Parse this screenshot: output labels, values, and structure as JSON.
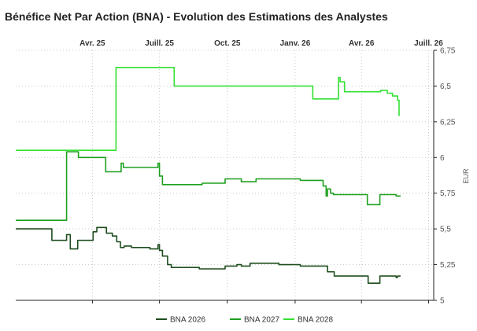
{
  "chart_data": {
    "type": "line",
    "title": "Bénéfice Net Par Action (BNA) - Evolution des Estimations des Analystes",
    "ylabel": "EUR",
    "ylim": [
      5,
      6.75
    ],
    "yticks": [
      {
        "value": 5,
        "label": "5"
      },
      {
        "value": 5.25,
        "label": "5,25"
      },
      {
        "value": 5.5,
        "label": "5,5"
      },
      {
        "value": 5.75,
        "label": "5,75"
      },
      {
        "value": 6,
        "label": "6"
      },
      {
        "value": 6.25,
        "label": "6,25"
      },
      {
        "value": 6.5,
        "label": "6,5"
      },
      {
        "value": 6.75,
        "label": "6,75"
      }
    ],
    "x_range": [
      "2024-12-18",
      "2026-07-08"
    ],
    "xticks": [
      {
        "date": "2025-04-01",
        "label": "Avr. 25"
      },
      {
        "date": "2025-07-01",
        "label": "Juill. 25"
      },
      {
        "date": "2025-10-01",
        "label": "Oct. 25"
      },
      {
        "date": "2026-01-01",
        "label": "Janv. 26"
      },
      {
        "date": "2026-04-01",
        "label": "Avr. 26"
      },
      {
        "date": "2026-07-01",
        "label": "Juill. 26"
      }
    ],
    "grid": true,
    "legend_position": "bottom-center",
    "series": [
      {
        "name": "BNA 2026",
        "color": "#1e4d1e",
        "points": [
          [
            "2024-12-18",
            5.5
          ],
          [
            "2025-02-05",
            5.5
          ],
          [
            "2025-02-05",
            5.42
          ],
          [
            "2025-02-25",
            5.42
          ],
          [
            "2025-02-25",
            5.46
          ],
          [
            "2025-03-02",
            5.46
          ],
          [
            "2025-03-02",
            5.36
          ],
          [
            "2025-03-12",
            5.36
          ],
          [
            "2025-03-12",
            5.42
          ],
          [
            "2025-04-02",
            5.42
          ],
          [
            "2025-04-02",
            5.48
          ],
          [
            "2025-04-07",
            5.48
          ],
          [
            "2025-04-07",
            5.51
          ],
          [
            "2025-04-20",
            5.51
          ],
          [
            "2025-04-20",
            5.47
          ],
          [
            "2025-04-28",
            5.47
          ],
          [
            "2025-04-28",
            5.45
          ],
          [
            "2025-05-04",
            5.45
          ],
          [
            "2025-05-04",
            5.41
          ],
          [
            "2025-05-09",
            5.41
          ],
          [
            "2025-05-09",
            5.37
          ],
          [
            "2025-05-14",
            5.37
          ],
          [
            "2025-05-14",
            5.38
          ],
          [
            "2025-05-24",
            5.38
          ],
          [
            "2025-05-24",
            5.37
          ],
          [
            "2025-06-18",
            5.37
          ],
          [
            "2025-06-18",
            5.36
          ],
          [
            "2025-06-29",
            5.36
          ],
          [
            "2025-06-29",
            5.39
          ],
          [
            "2025-07-01",
            5.39
          ],
          [
            "2025-07-01",
            5.35
          ],
          [
            "2025-07-05",
            5.35
          ],
          [
            "2025-07-05",
            5.31
          ],
          [
            "2025-07-12",
            5.31
          ],
          [
            "2025-07-12",
            5.25
          ],
          [
            "2025-07-17",
            5.25
          ],
          [
            "2025-07-17",
            5.23
          ],
          [
            "2025-08-24",
            5.23
          ],
          [
            "2025-08-24",
            5.22
          ],
          [
            "2025-09-28",
            5.22
          ],
          [
            "2025-09-28",
            5.24
          ],
          [
            "2025-10-14",
            5.24
          ],
          [
            "2025-10-14",
            5.25
          ],
          [
            "2025-10-20",
            5.25
          ],
          [
            "2025-10-20",
            5.24
          ],
          [
            "2025-11-01",
            5.24
          ],
          [
            "2025-11-01",
            5.26
          ],
          [
            "2025-12-10",
            5.26
          ],
          [
            "2025-12-10",
            5.25
          ],
          [
            "2026-01-08",
            5.25
          ],
          [
            "2026-01-08",
            5.24
          ],
          [
            "2026-02-14",
            5.24
          ],
          [
            "2026-02-14",
            5.2
          ],
          [
            "2026-02-23",
            5.2
          ],
          [
            "2026-02-23",
            5.17
          ],
          [
            "2026-04-10",
            5.17
          ],
          [
            "2026-04-10",
            5.12
          ],
          [
            "2026-04-26",
            5.12
          ],
          [
            "2026-04-26",
            5.17
          ],
          [
            "2026-05-18",
            5.17
          ],
          [
            "2026-05-18",
            5.16
          ],
          [
            "2026-05-20",
            5.16
          ],
          [
            "2026-05-20",
            5.17
          ],
          [
            "2026-05-24",
            5.17
          ]
        ]
      },
      {
        "name": "BNA 2027",
        "color": "#1ea01e",
        "points": [
          [
            "2024-12-18",
            5.56
          ],
          [
            "2025-02-25",
            5.56
          ],
          [
            "2025-02-25",
            6.04
          ],
          [
            "2025-03-13",
            6.04
          ],
          [
            "2025-03-13",
            6.0
          ],
          [
            "2025-04-19",
            6.0
          ],
          [
            "2025-04-19",
            5.9
          ],
          [
            "2025-05-10",
            5.9
          ],
          [
            "2025-05-10",
            5.96
          ],
          [
            "2025-05-13",
            5.96
          ],
          [
            "2025-05-13",
            5.93
          ],
          [
            "2025-06-29",
            5.93
          ],
          [
            "2025-06-29",
            5.96
          ],
          [
            "2025-07-01",
            5.96
          ],
          [
            "2025-07-01",
            5.87
          ],
          [
            "2025-07-05",
            5.87
          ],
          [
            "2025-07-05",
            5.81
          ],
          [
            "2025-08-28",
            5.81
          ],
          [
            "2025-08-28",
            5.82
          ],
          [
            "2025-09-28",
            5.82
          ],
          [
            "2025-09-28",
            5.85
          ],
          [
            "2025-10-20",
            5.85
          ],
          [
            "2025-10-20",
            5.83
          ],
          [
            "2025-11-09",
            5.83
          ],
          [
            "2025-11-09",
            5.85
          ],
          [
            "2026-01-08",
            5.85
          ],
          [
            "2026-01-08",
            5.84
          ],
          [
            "2026-02-08",
            5.84
          ],
          [
            "2026-02-08",
            5.8
          ],
          [
            "2026-02-12",
            5.8
          ],
          [
            "2026-02-12",
            5.73
          ],
          [
            "2026-02-14",
            5.73
          ],
          [
            "2026-02-14",
            5.78
          ],
          [
            "2026-02-18",
            5.78
          ],
          [
            "2026-02-18",
            5.75
          ],
          [
            "2026-02-22",
            5.75
          ],
          [
            "2026-02-22",
            5.74
          ],
          [
            "2026-04-09",
            5.74
          ],
          [
            "2026-04-09",
            5.67
          ],
          [
            "2026-04-26",
            5.67
          ],
          [
            "2026-04-26",
            5.74
          ],
          [
            "2026-05-18",
            5.74
          ],
          [
            "2026-05-18",
            5.73
          ],
          [
            "2026-05-24",
            5.73
          ]
        ]
      },
      {
        "name": "BNA 2028",
        "color": "#33e033",
        "points": [
          [
            "2024-12-18",
            6.05
          ],
          [
            "2025-05-03",
            6.05
          ],
          [
            "2025-05-03",
            6.63
          ],
          [
            "2025-07-21",
            6.63
          ],
          [
            "2025-07-21",
            6.5
          ],
          [
            "2026-01-25",
            6.5
          ],
          [
            "2026-01-25",
            6.41
          ],
          [
            "2026-03-01",
            6.41
          ],
          [
            "2026-03-01",
            6.56
          ],
          [
            "2026-03-03",
            6.56
          ],
          [
            "2026-03-03",
            6.53
          ],
          [
            "2026-03-09",
            6.53
          ],
          [
            "2026-03-09",
            6.46
          ],
          [
            "2026-04-27",
            6.46
          ],
          [
            "2026-04-27",
            6.47
          ],
          [
            "2026-05-06",
            6.47
          ],
          [
            "2026-05-06",
            6.45
          ],
          [
            "2026-05-13",
            6.45
          ],
          [
            "2026-05-13",
            6.43
          ],
          [
            "2026-05-20",
            6.43
          ],
          [
            "2026-05-20",
            6.4
          ],
          [
            "2026-05-22",
            6.4
          ],
          [
            "2026-05-22",
            6.29
          ]
        ]
      }
    ]
  }
}
